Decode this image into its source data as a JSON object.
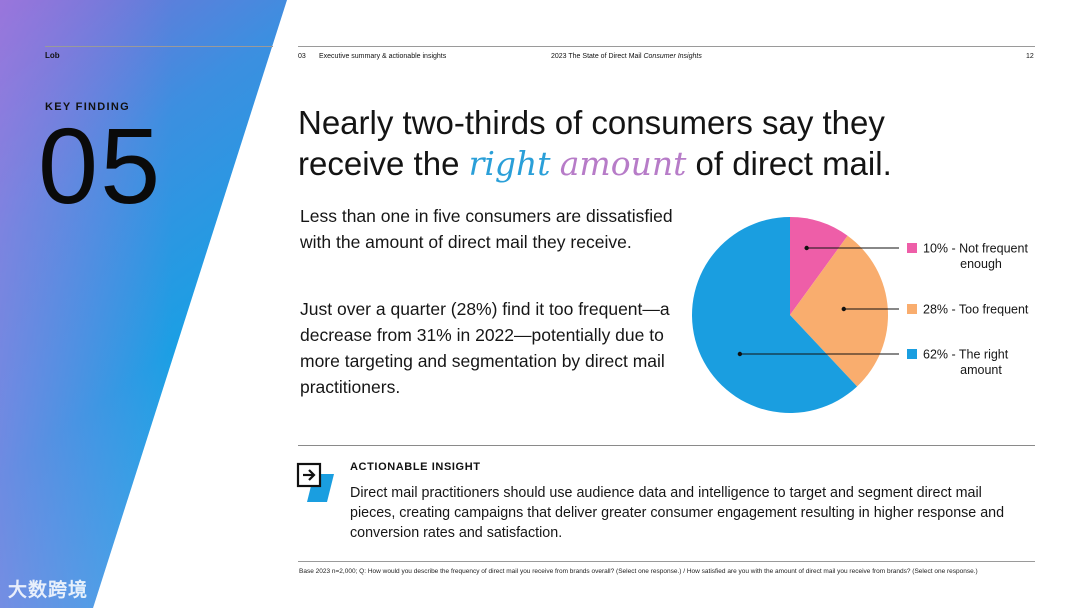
{
  "header": {
    "logo": "Lob",
    "section_number": "03",
    "section_title": "Executive summary & actionable insights",
    "report_title_main": "2023 The State of Direct Mail",
    "report_title_italic": "Consumer Insights",
    "page_number": "12"
  },
  "key_finding": {
    "label": "KEY FINDING",
    "number": "05"
  },
  "headline": {
    "line1": "Nearly two-thirds of consumers say they",
    "line2_before": "receive the ",
    "accent_right": "right",
    "accent_amount": "amount",
    "line2_after": " of direct mail."
  },
  "paragraphs": [
    "Less than one in five consumers are dissatisfied with the amount of direct mail they receive.",
    "Just over a quarter (28%) find it too frequent—a decrease from 31% in 2022—potentially due to more targeting and segmentation by direct mail practitioners."
  ],
  "chart_data": {
    "type": "pie",
    "title": "",
    "slices": [
      {
        "label_lines": [
          "10% - Not frequent",
          "enough"
        ],
        "value": 10,
        "color": "#ee5ea8"
      },
      {
        "label_lines": [
          "28% - Too frequent"
        ],
        "value": 28,
        "color": "#f9ad6e"
      },
      {
        "label_lines": [
          "62% - The right",
          "amount"
        ],
        "value": 62,
        "color": "#1a9ee0"
      }
    ],
    "legend_position": "right"
  },
  "insight": {
    "heading": "ACTIONABLE INSIGHT",
    "body": "Direct mail practitioners should use audience data and intelligence to target and segment direct mail pieces, creating campaigns that deliver greater consumer engagement resulting in higher response and conversion rates and satisfaction.",
    "icon": "arrow-box-icon"
  },
  "footnote": "Base 2023 n=2,000; Q: How would you describe the frequency of direct mail you receive from brands overall? (Select one response.) / How satisfied are you with the amount of direct mail you receive from brands? (Select one response.)",
  "watermark": "大数跨境",
  "colors": {
    "accent_blue": "#1a9ee0",
    "accent_purple": "#b77cc8",
    "accent_pink": "#ee5ea8",
    "accent_orange": "#f9ad6e"
  }
}
